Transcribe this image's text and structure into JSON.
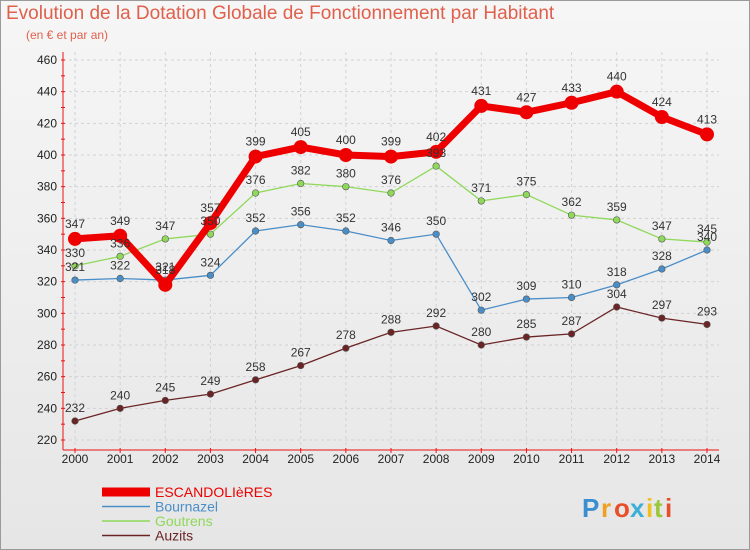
{
  "title": "Evolution de la Dotation Globale de Fonctionnement par Habitant",
  "subtitle": "(en € et par an)",
  "logo": {
    "letters": [
      "P",
      "r",
      "o",
      "x",
      "i",
      "t",
      "i"
    ],
    "colors": [
      "#3a8fd0",
      "#f0a020",
      "#e94e2b",
      "#3ab0d8",
      "#f0c020",
      "#9bc83a",
      "#e94e2b"
    ]
  },
  "chart_data": {
    "type": "line",
    "categories": [
      "2000",
      "2001",
      "2002",
      "2003",
      "2004",
      "2005",
      "2006",
      "2007",
      "2008",
      "2009",
      "2010",
      "2011",
      "2012",
      "2013",
      "2014"
    ],
    "ylim": [
      220,
      460
    ],
    "yticks": [
      220,
      240,
      260,
      280,
      300,
      320,
      340,
      360,
      380,
      400,
      420,
      440,
      460
    ],
    "grid": true,
    "legend_position": "bottom-left",
    "series": [
      {
        "name": "Auzits",
        "color": "#6b2426",
        "emphasis": false,
        "values": [
          232,
          240,
          245,
          249,
          258,
          267,
          278,
          288,
          292,
          280,
          285,
          287,
          304,
          297,
          293
        ]
      },
      {
        "name": "Bournazel",
        "color": "#4a8ec8",
        "emphasis": false,
        "values": [
          321,
          322,
          321,
          324,
          352,
          356,
          352,
          346,
          350,
          302,
          309,
          310,
          318,
          328,
          340
        ]
      },
      {
        "name": "Goutrens",
        "color": "#8fd85a",
        "emphasis": false,
        "values": [
          330,
          336,
          347,
          350,
          376,
          382,
          380,
          376,
          393,
          371,
          375,
          362,
          359,
          347,
          345
        ]
      },
      {
        "name": "ESCANDOLIèRES",
        "color": "#ee0000",
        "emphasis": true,
        "values": [
          347,
          349,
          318,
          357,
          399,
          405,
          400,
          399,
          402,
          431,
          427,
          433,
          440,
          424,
          413
        ]
      }
    ],
    "legend_order": [
      "ESCANDOLIèRES",
      "Bournazel",
      "Goutrens",
      "Auzits"
    ]
  }
}
